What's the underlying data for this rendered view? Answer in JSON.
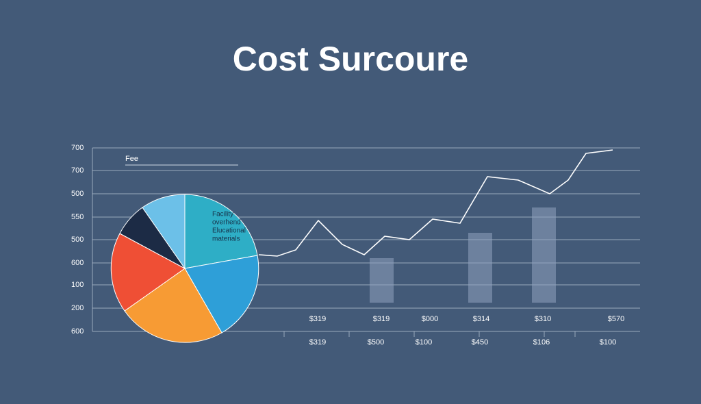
{
  "title": "Cost Surcoure",
  "y_labels": [
    "700",
    "700",
    "500",
    "550",
    "500",
    "600",
    "100",
    "200",
    "600"
  ],
  "legend": "Fee",
  "pie_labels": [
    "Facility",
    "overhend",
    "Elucational",
    "materials"
  ],
  "x_labels_top": [
    "$319",
    "$319",
    "$000",
    "$314",
    "$310",
    "$570"
  ],
  "x_labels_bottom": [
    "$319",
    "$500",
    "$100",
    "$450",
    "$106",
    "$100"
  ]
}
